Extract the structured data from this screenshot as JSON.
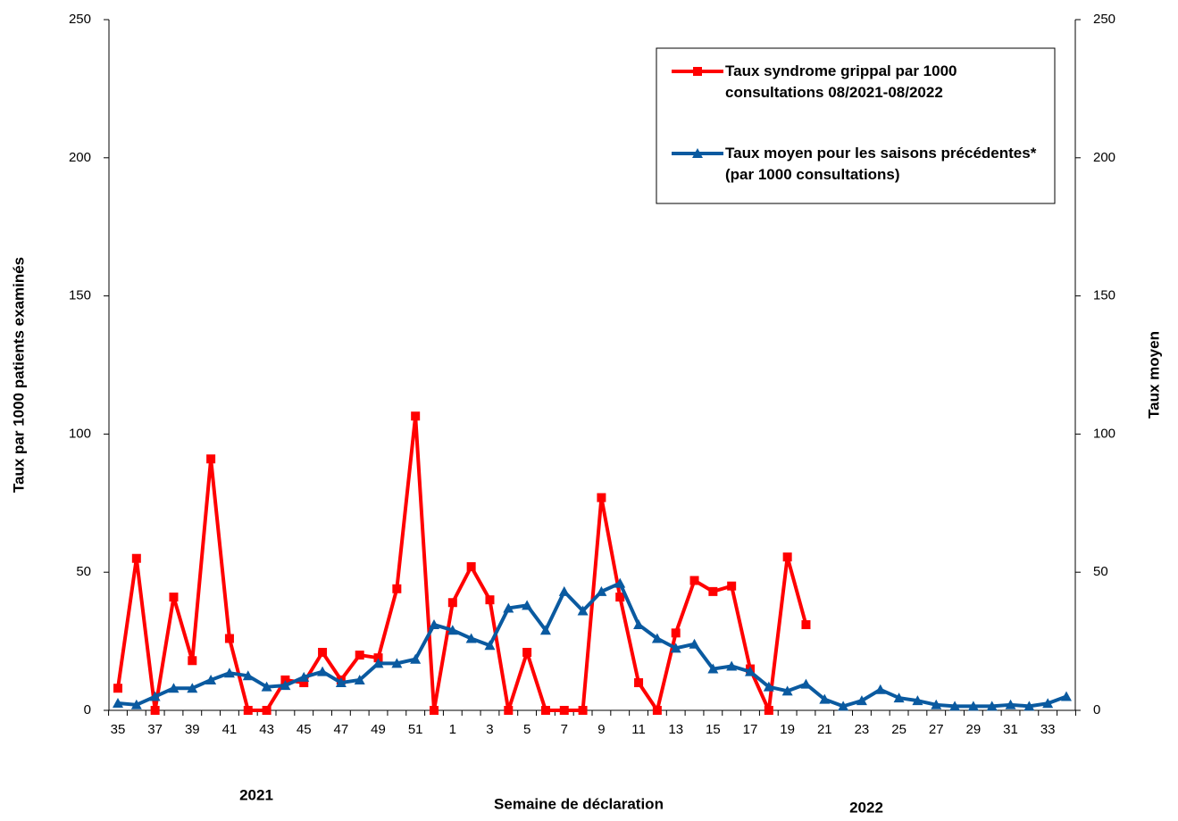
{
  "chart_data": {
    "type": "line",
    "x_label": "Semaine de déclaration",
    "y_label": "Taux par 1000 patients examinés",
    "y2_label": "Taux moyen",
    "annotations": [
      "2021",
      "2022"
    ],
    "categories": [
      "35",
      null,
      "37",
      null,
      "39",
      null,
      "41",
      null,
      "43",
      null,
      "45",
      null,
      "47",
      null,
      "49",
      null,
      "51",
      null,
      "1",
      null,
      "3",
      null,
      "5",
      null,
      "7",
      null,
      "9",
      null,
      "11",
      null,
      "13",
      null,
      "15",
      null,
      "17",
      null,
      "19",
      null,
      "21",
      null,
      "23",
      null,
      "25",
      null,
      "27",
      null,
      "29",
      null,
      "31",
      null,
      "33",
      null
    ],
    "series": [
      {
        "name": "Taux syndrome grippal par 1000 consultations 08/2021-08/2022",
        "color": "#ff0000",
        "marker": "square",
        "values": [
          8,
          55,
          0,
          41,
          18,
          91,
          26,
          0,
          0,
          11,
          10,
          21,
          11,
          20,
          19,
          44,
          106.5,
          0,
          39,
          52,
          40,
          0,
          21,
          0,
          0,
          0,
          77,
          41,
          10,
          0,
          28,
          47,
          43,
          45,
          15,
          0,
          55.5,
          31,
          null,
          null,
          null,
          null,
          null,
          null,
          null,
          null,
          null,
          null,
          null,
          null,
          null,
          null
        ]
      },
      {
        "name": "Taux moyen pour les saisons précédentes* (par 1000 consultations)",
        "color": "#0a5aa0",
        "marker": "triangle",
        "values": [
          2.6,
          2,
          5,
          8,
          8,
          11,
          13.5,
          12.5,
          8.5,
          9,
          12,
          14,
          10,
          11,
          17,
          17,
          18.5,
          31,
          29,
          26,
          23.5,
          37,
          38,
          29,
          43,
          36,
          43,
          46,
          31,
          26,
          22.5,
          24,
          15,
          16,
          14,
          8.5,
          7,
          9.5,
          4,
          1.5,
          3.5,
          7.5,
          4.5,
          3.5,
          2,
          1.5,
          1.5,
          1.5,
          2,
          1.5,
          2.5,
          5
        ]
      }
    ],
    "ylim": [
      0,
      250
    ],
    "yticks": [
      0,
      50,
      100,
      150,
      200,
      250
    ],
    "y2lim": [
      0,
      250
    ],
    "y2ticks": [
      0,
      50,
      100,
      150,
      200,
      250
    ],
    "legend": "top-right",
    "grid": false
  }
}
